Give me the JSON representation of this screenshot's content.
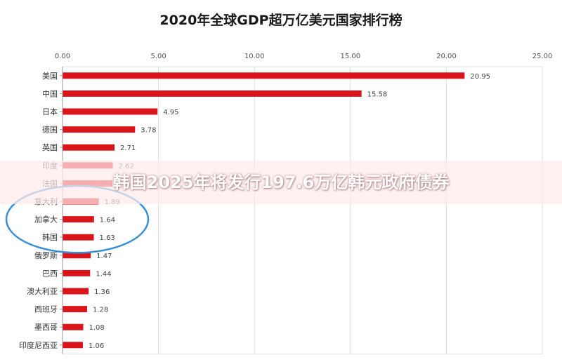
{
  "chart_data": {
    "type": "bar",
    "orientation": "horizontal",
    "title": "2020年全球GDP超万亿美元国家排行榜",
    "xlabel": "",
    "ylabel": "",
    "xlim": [
      0,
      25
    ],
    "x_ticks": [
      "0.00",
      "5.00",
      "10.00",
      "15.00",
      "20.00",
      "25.00"
    ],
    "categories": [
      "美国",
      "中国",
      "日本",
      "德国",
      "英国",
      "印度",
      "法国",
      "意大利",
      "加拿大",
      "韩国",
      "俄罗斯",
      "巴西",
      "澳大利亚",
      "西班牙",
      "墨西哥",
      "印度尼西亚"
    ],
    "values": [
      20.95,
      15.58,
      4.95,
      3.78,
      2.71,
      2.62,
      2.6,
      1.89,
      1.64,
      1.63,
      1.47,
      1.44,
      1.36,
      1.28,
      1.08,
      1.06
    ],
    "value_labels": [
      "20.95",
      "15.58",
      "4.95",
      "3.78",
      "2.71",
      "2.62",
      "",
      "1.89",
      "1.64",
      "1.63",
      "1.47",
      "1.44",
      "1.36",
      "1.28",
      "1.08",
      "1.06"
    ],
    "bar_color": "#d9141b",
    "grid": true,
    "legend": "none",
    "annotation": "blue ellipse circling 意大利, 加拿大, 韩国"
  },
  "overlay": {
    "headline": "韩国2025年将发行197.6万亿韩元政府债券"
  },
  "colors": {
    "bar": "#d9141b",
    "circle": "#3a8fd6",
    "grid": "#dcdcdc"
  }
}
